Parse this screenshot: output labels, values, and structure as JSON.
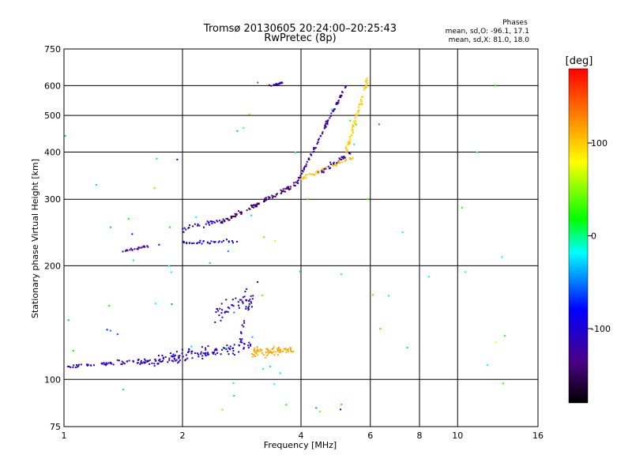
{
  "header": {
    "title_line1": "Tromsø 20130605 20:24:00–20:25:43",
    "title_line2": "RwPretec (8p)",
    "phase_heading": "Phases",
    "phase_o": "mean, sd,O: -96.1, 17.1",
    "phase_x": "mean, sd,X:  81.0, 18.0"
  },
  "colorbar": {
    "unit": "[deg]",
    "tick_labels": [
      "100",
      "0",
      "-100"
    ],
    "ticks": [
      100,
      0,
      -100
    ],
    "range": [
      -180,
      180
    ],
    "colormap": "rainbow"
  },
  "chart_data": {
    "type": "scatter",
    "xlabel": "Frequency [MHz]",
    "ylabel": "Stationary phase Virtual Height [km]",
    "xscale": "log",
    "yscale": "log",
    "xlim": [
      1,
      16
    ],
    "ylim": [
      75,
      750
    ],
    "x_ticks": [
      1,
      2,
      4,
      6,
      8,
      10,
      16
    ],
    "x_tick_labels": [
      "1",
      "2",
      "4",
      "6",
      "8",
      "10",
      "16"
    ],
    "y_ticks": [
      75,
      100,
      200,
      300,
      400,
      500,
      600,
      750
    ],
    "y_tick_labels": [
      "75",
      "100",
      "200",
      "300",
      "400",
      "500",
      "600",
      "750"
    ],
    "grid": true,
    "point_size": 2,
    "clusters": [
      {
        "x0": 1.0,
        "x1": 1.3,
        "y0": 108,
        "y1": 110,
        "n": 28,
        "spread": 0.015,
        "phase": -110,
        "phase_sd": 12
      },
      {
        "x0": 1.3,
        "x1": 2.0,
        "y0": 110,
        "y1": 113,
        "n": 50,
        "spread": 0.025,
        "phase": -115,
        "phase_sd": 10
      },
      {
        "x0": 1.7,
        "x1": 3.0,
        "y0": 112,
        "y1": 124,
        "n": 110,
        "spread": 0.06,
        "phase": -105,
        "phase_sd": 15
      },
      {
        "x0": 2.4,
        "x1": 3.0,
        "y0": 150,
        "y1": 165,
        "n": 45,
        "spread": 0.08,
        "phase": -110,
        "phase_sd": 14
      },
      {
        "x0": 2.8,
        "x1": 3.1,
        "y0": 130,
        "y1": 185,
        "n": 20,
        "spread": 0.04,
        "phase": -125,
        "phase_sd": 10
      },
      {
        "x0": 3.0,
        "x1": 3.8,
        "y0": 118,
        "y1": 120,
        "n": 70,
        "spread": 0.04,
        "phase": 115,
        "phase_sd": 12
      },
      {
        "x0": 1.4,
        "x1": 1.65,
        "y0": 218,
        "y1": 226,
        "n": 22,
        "spread": 0.01,
        "phase": -135,
        "phase_sd": 8
      },
      {
        "x0": 2.0,
        "x1": 2.75,
        "y0": 230,
        "y1": 232,
        "n": 35,
        "spread": 0.015,
        "phase": -95,
        "phase_sd": 10
      },
      {
        "x0": 2.0,
        "x1": 2.6,
        "y0": 250,
        "y1": 265,
        "n": 30,
        "spread": 0.025,
        "phase": -105,
        "phase_sd": 10
      },
      {
        "x0": 2.5,
        "x1": 3.9,
        "y0": 260,
        "y1": 330,
        "n": 90,
        "spread": 0.02,
        "phase": -145,
        "phase_sd": 8
      },
      {
        "x0": 3.9,
        "x1": 5.2,
        "y0": 330,
        "y1": 600,
        "n": 90,
        "spread": 0.02,
        "phase": -125,
        "phase_sd": 12
      },
      {
        "x0": 4.4,
        "x1": 5.4,
        "y0": 350,
        "y1": 400,
        "n": 35,
        "spread": 0.02,
        "phase": -120,
        "phase_sd": 10
      },
      {
        "x0": 4.0,
        "x1": 5.5,
        "y0": 340,
        "y1": 390,
        "n": 40,
        "spread": 0.02,
        "phase": 105,
        "phase_sd": 10
      },
      {
        "x0": 5.2,
        "x1": 5.9,
        "y0": 400,
        "y1": 620,
        "n": 70,
        "spread": 0.03,
        "phase": 100,
        "phase_sd": 12
      },
      {
        "x0": 3.3,
        "x1": 3.6,
        "y0": 598,
        "y1": 610,
        "n": 18,
        "spread": 0.01,
        "phase": -125,
        "phase_sd": 10
      },
      {
        "x0": 1.0,
        "x1": 14.0,
        "y0": 80,
        "y1": 640,
        "n": 75,
        "spread": 0.3,
        "phase": 0,
        "phase_sd": 120
      }
    ]
  }
}
